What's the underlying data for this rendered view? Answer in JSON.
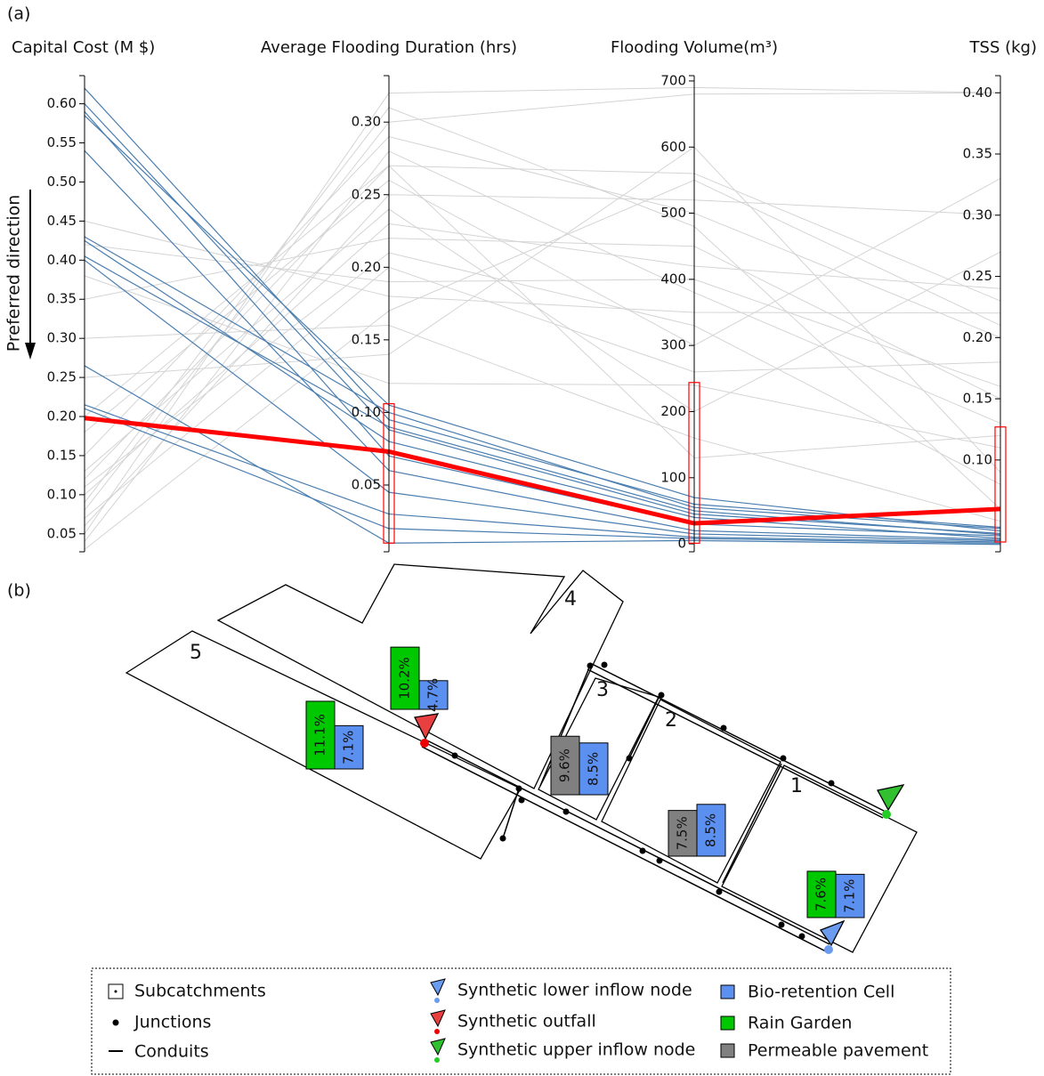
{
  "chart_data": {
    "type": "parallel",
    "panel_label": "(a)",
    "direction_label": "Preferred direction",
    "axes": [
      {
        "label": "Capital Cost (M $)",
        "ylim": [
          0.027,
          0.636
        ],
        "yticks": [
          0.05,
          {
            "value": 0.1,
            "label": "0.10"
          },
          0.15,
          {
            "value": 0.2,
            "label": "0.20"
          },
          0.25,
          {
            "value": 0.3,
            "label": "0.30"
          },
          0.35,
          {
            "value": 0.4,
            "label": "0.40"
          },
          0.45,
          {
            "value": 0.5,
            "label": "0.50"
          },
          0.55,
          {
            "value": 0.6,
            "label": "0.60"
          }
        ]
      },
      {
        "label": "Average Flooding Duration (hrs)",
        "ylim": [
          0.004,
          0.332
        ],
        "yticks": [
          0.05,
          {
            "value": 0.1,
            "label": "0.10"
          },
          0.15,
          {
            "value": 0.2,
            "label": "0.20"
          },
          0.25,
          {
            "value": 0.3,
            "label": "0.30"
          }
        ],
        "filter": [
          0.01,
          0.106
        ]
      },
      {
        "label": "Flooding Volume(m³)",
        "ylim": [
          -12,
          708
        ],
        "yticks": [
          0,
          100,
          200,
          300,
          400,
          500,
          600,
          700
        ],
        "filter": [
          1,
          244
        ]
      },
      {
        "label": "TSS (kg)",
        "ylim": [
          0.025,
          0.414
        ],
        "yticks": [
          {
            "value": 0.1,
            "label": "0.10"
          },
          0.15,
          {
            "value": 0.2,
            "label": "0.20"
          },
          0.25,
          {
            "value": 0.3,
            "label": "0.30"
          },
          0.35,
          {
            "value": 0.4,
            "label": "0.40"
          }
        ],
        "filter": [
          0.033,
          0.127
        ]
      }
    ],
    "series": [
      {
        "color": "#d4d4d4",
        "line_width": 1,
        "values": [
          [
            0.05,
            0.32,
            690,
            0.4
          ],
          [
            0.08,
            0.3,
            680,
            0.4
          ],
          [
            0.12,
            0.27,
            560,
            0.23
          ],
          [
            0.06,
            0.25,
            520,
            0.3
          ],
          [
            0.15,
            0.29,
            500,
            0.2
          ],
          [
            0.35,
            0.22,
            450,
            0.15
          ],
          [
            0.1,
            0.23,
            420,
            0.24
          ],
          [
            0.04,
            0.28,
            380,
            0.13
          ],
          [
            0.45,
            0.18,
            350,
            0.22
          ],
          [
            0.18,
            0.26,
            300,
            0.33
          ],
          [
            0.07,
            0.2,
            260,
            0.18
          ],
          [
            0.38,
            0.12,
            240,
            0.11
          ],
          [
            0.25,
            0.14,
            600,
            0.09
          ],
          [
            0.09,
            0.31,
            480,
            0.06
          ],
          [
            0.13,
            0.24,
            200,
            0.27
          ],
          [
            0.3,
            0.16,
            160,
            0.05
          ],
          [
            0.2,
            0.27,
            130,
            0.12
          ],
          [
            0.11,
            0.21,
            330,
            0.08
          ],
          [
            0.42,
            0.19,
            400,
            0.16
          ],
          [
            0.03,
            0.17,
            550,
            0.21
          ]
        ]
      },
      {
        "color": "#4a7eb0",
        "line_width": 1.2,
        "values": [
          [
            0.62,
            0.095,
            60,
            0.045
          ],
          [
            0.6,
            0.088,
            45,
            0.04
          ],
          [
            0.59,
            0.07,
            30,
            0.038
          ],
          [
            0.585,
            0.105,
            70,
            0.042
          ],
          [
            0.54,
            0.06,
            20,
            0.035
          ],
          [
            0.43,
            0.1,
            55,
            0.044
          ],
          [
            0.425,
            0.08,
            40,
            0.036
          ],
          [
            0.405,
            0.09,
            50,
            0.039
          ],
          [
            0.4,
            0.045,
            15,
            0.034
          ],
          [
            0.265,
            0.01,
            5,
            0.031
          ],
          [
            0.215,
            0.03,
            10,
            0.033
          ],
          [
            0.21,
            0.02,
            8,
            0.032
          ]
        ]
      },
      {
        "color": "#ff0000",
        "line_width": 5,
        "values": [
          [
            0.198,
            0.073,
            31,
            0.06
          ]
        ]
      }
    ]
  },
  "map": {
    "panel_label": "(b)",
    "subcatchments": [
      "1",
      "2",
      "3",
      "4",
      "5"
    ],
    "allocations": [
      [
        {
          "value": 10.2,
          "label": "10.2%",
          "color": "#00c800"
        },
        {
          "value": 4.7,
          "label": "4.7%",
          "color": "#5b8ff0"
        }
      ],
      [
        {
          "value": 11.1,
          "label": "11.1%",
          "color": "#00c800"
        },
        {
          "value": 7.1,
          "label": "7.1%",
          "color": "#5b8ff0"
        }
      ],
      [
        {
          "value": 9.6,
          "label": "9.6%",
          "color": "#808080"
        },
        {
          "value": 8.5,
          "label": "8.5%",
          "color": "#5b8ff0"
        }
      ],
      [
        {
          "value": 7.5,
          "label": "7.5%",
          "color": "#808080"
        },
        {
          "value": 8.5,
          "label": "8.5%",
          "color": "#5b8ff0"
        }
      ],
      [
        {
          "value": 7.6,
          "label": "7.6%",
          "color": "#00c800"
        },
        {
          "value": 7.1,
          "label": "7.1%",
          "color": "#5b8ff0"
        }
      ]
    ],
    "legend": [
      "Subcatchments",
      "Junctions",
      "Conduits",
      "Synthetic lower inflow node",
      "Synthetic outfall",
      "Synthetic upper inflow node",
      "Bio-retention Cell",
      "Rain Garden",
      "Permeable pavement"
    ]
  }
}
